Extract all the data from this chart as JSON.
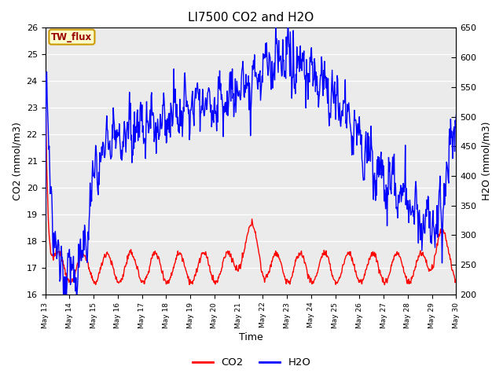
{
  "title": "LI7500 CO2 and H2O",
  "xlabel": "Time",
  "ylabel_left": "CO2 (mmol/m3)",
  "ylabel_right": "H2O (mmol/m3)",
  "ylim_left": [
    16.0,
    26.0
  ],
  "ylim_right": [
    200,
    650
  ],
  "yticks_left": [
    16.0,
    17.0,
    18.0,
    19.0,
    20.0,
    21.0,
    22.0,
    23.0,
    24.0,
    25.0,
    26.0
  ],
  "yticks_right": [
    200,
    250,
    300,
    350,
    400,
    450,
    500,
    550,
    600,
    650
  ],
  "co2_color": "#ff0000",
  "h2o_color": "#0000ff",
  "plot_bg_color": "#ebebeb",
  "annotation_text": "TW_flux",
  "annotation_bg": "#ffffcc",
  "annotation_border": "#cc9900",
  "legend_co2": "CO2",
  "legend_h2o": "H2O",
  "grid_color": "#ffffff",
  "linewidth": 1.0,
  "title_fontsize": 11,
  "axis_fontsize": 9,
  "tick_fontsize": 8
}
